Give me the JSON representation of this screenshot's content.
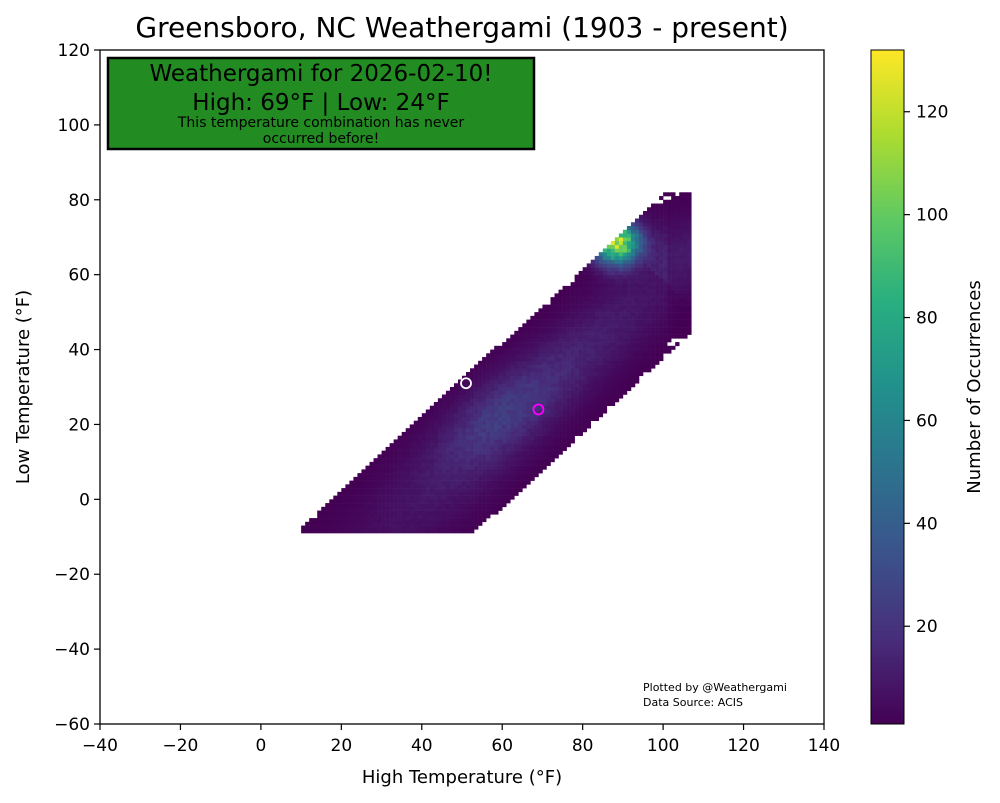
{
  "chart_data": {
    "type": "heatmap",
    "title": "Greensboro, NC Weathergami (1903 - present)",
    "xlabel": "High Temperature (°F)",
    "ylabel": "Low Temperature (°F)",
    "xlim": [
      -40,
      140
    ],
    "ylim": [
      -60,
      120
    ],
    "xticks": [
      -40,
      -20,
      0,
      20,
      40,
      60,
      80,
      100,
      120,
      140
    ],
    "yticks": [
      -60,
      -40,
      -20,
      0,
      20,
      40,
      60,
      80,
      100,
      120
    ],
    "xtick_labels": [
      "−40",
      "−20",
      "0",
      "20",
      "40",
      "60",
      "80",
      "100",
      "120",
      "140"
    ],
    "ytick_labels": [
      "−60",
      "−40",
      "−20",
      "0",
      "20",
      "40",
      "60",
      "80",
      "100",
      "120"
    ],
    "grid": false,
    "colormap": "viridis",
    "colorbar": {
      "label": "Number of Occurrences",
      "range": [
        1,
        132
      ],
      "ticks": [
        20,
        40,
        60,
        80,
        100,
        120
      ],
      "tick_labels": [
        "20",
        "40",
        "60",
        "80",
        "100",
        "120"
      ]
    },
    "density_approximation": {
      "description_values": "peak count near high 88°F / low 68°F; approx. bivariate distribution along high-low diagonal",
      "peak_high": 88,
      "peak_low": 68,
      "peak_count": 132,
      "high_range": [
        12,
        105
      ],
      "low_range": [
        -8,
        80
      ]
    },
    "markers": [
      {
        "high": 51,
        "low": 31,
        "color": "#ffffff"
      },
      {
        "high": 69,
        "low": 24,
        "color": "#ff00ff"
      }
    ],
    "annotation_box": {
      "line1": "Weathergami for 2026-02-10!",
      "line2": "High: 69°F  |  Low: 24°F",
      "line3": "This temperature combination has never",
      "line4": "occurred before!",
      "background": "#228B22"
    },
    "credit": {
      "line1": "Plotted by @Weathergami",
      "line2": "Data Source: ACIS"
    }
  }
}
